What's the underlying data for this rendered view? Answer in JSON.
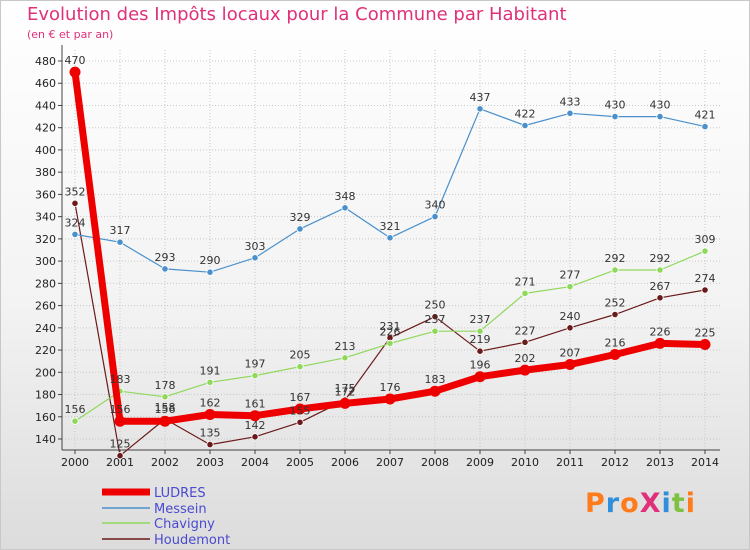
{
  "chart_data": {
    "type": "line",
    "title": "Evolution des Impôts locaux pour la Commune par Habitant",
    "subtitle": "(en € et par an)",
    "x": [
      "2000",
      "2001",
      "2002",
      "2003",
      "2004",
      "2005",
      "2006",
      "2007",
      "2008",
      "2009",
      "2010",
      "2011",
      "2012",
      "2013",
      "2014"
    ],
    "ylim": [
      120,
      480
    ],
    "yticks": [
      140,
      160,
      180,
      200,
      220,
      240,
      260,
      280,
      300,
      320,
      340,
      360,
      380,
      400,
      420,
      440,
      460,
      480
    ],
    "yticklabels": [
      "140",
      "160",
      "180",
      "200",
      "220",
      "240",
      "260",
      "280",
      "300",
      "320",
      "340",
      "360",
      "380",
      "400",
      "420",
      "440",
      "460",
      "480"
    ],
    "grid": true,
    "legend_position": "bottom-left",
    "series": [
      {
        "name": "LUDRES",
        "color": "#ee0000",
        "values": [
          470,
          156,
          156,
          162,
          161,
          167,
          172,
          176,
          183,
          196,
          202,
          207,
          216,
          226,
          225
        ],
        "labels": [
          "470",
          "156",
          "156",
          "162",
          "161",
          "167",
          "172",
          "176",
          "183",
          "196",
          "202",
          "207",
          "216",
          "226",
          "225"
        ]
      },
      {
        "name": "Messein",
        "color": "#4a90cc",
        "values": [
          324,
          317,
          293,
          290,
          303,
          329,
          348,
          321,
          340,
          437,
          422,
          433,
          430,
          430,
          421
        ],
        "labels": [
          "324",
          "317",
          "293",
          "290",
          "303",
          "329",
          "348",
          "321",
          "340",
          "437",
          "422",
          "433",
          "430",
          "430",
          "421"
        ]
      },
      {
        "name": "Chavigny",
        "color": "#8fd85a",
        "values": [
          156,
          183,
          178,
          191,
          197,
          205,
          213,
          226,
          237,
          237,
          271,
          277,
          292,
          292,
          309
        ],
        "labels": [
          "156",
          "183",
          "178",
          "191",
          "197",
          "205",
          "213",
          "226",
          "237",
          "237",
          "271",
          "277",
          "292",
          "292",
          "309"
        ]
      },
      {
        "name": "Houdemont",
        "color": "#6b1a1a",
        "values": [
          352,
          125,
          158,
          135,
          142,
          155,
          175,
          231,
          250,
          219,
          227,
          240,
          252,
          267,
          274
        ],
        "labels": [
          "352",
          "125",
          "158",
          "135",
          "142",
          "155",
          "175",
          "231",
          "250",
          "219",
          "227",
          "240",
          "252",
          "267",
          "274"
        ]
      }
    ]
  },
  "logo": {
    "text": "ProXiti"
  }
}
